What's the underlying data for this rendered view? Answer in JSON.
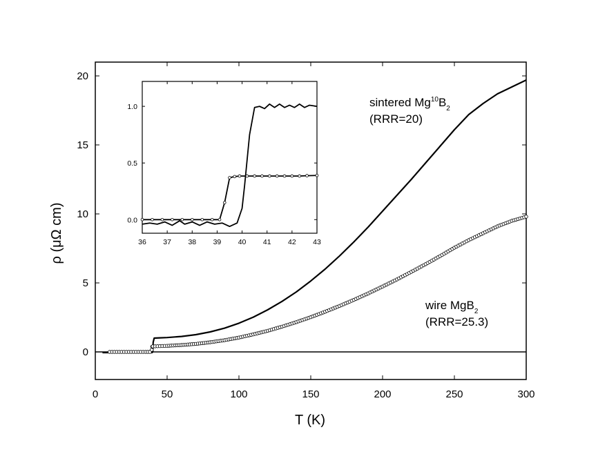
{
  "chart_data": [
    {
      "type": "line",
      "role": "main",
      "xlabel": "T (K)",
      "ylabel": "ρ (μΩ cm)",
      "xlim": [
        0,
        300
      ],
      "ylim": [
        -2,
        21
      ],
      "xticks": [
        0,
        50,
        100,
        150,
        200,
        250,
        300
      ],
      "yticks": [
        0,
        5,
        10,
        15,
        20
      ],
      "grid": false,
      "zero_line": true,
      "series": [
        {
          "style": "solid-line",
          "x": [
            5,
            10,
            20,
            30,
            38,
            39.5,
            40,
            40.3,
            41,
            45,
            50,
            60,
            70,
            80,
            90,
            100,
            110,
            120,
            130,
            140,
            150,
            160,
            170,
            180,
            190,
            200,
            210,
            220,
            230,
            240,
            250,
            260,
            270,
            280,
            290,
            300
          ],
          "y": [
            -0.05,
            -0.05,
            -0.05,
            -0.05,
            -0.05,
            -0.05,
            0.0,
            0.7,
            1.0,
            1.02,
            1.04,
            1.12,
            1.25,
            1.45,
            1.72,
            2.08,
            2.52,
            3.05,
            3.66,
            4.35,
            5.14,
            6.0,
            6.95,
            7.97,
            9.05,
            10.2,
            11.35,
            12.5,
            13.7,
            14.9,
            16.1,
            17.2,
            18.0,
            18.7,
            19.2,
            19.7
          ]
        },
        {
          "style": "open-circles",
          "x": [
            10,
            15,
            20,
            25,
            30,
            35,
            38,
            39.3,
            39.6,
            40,
            45,
            50,
            60,
            70,
            80,
            90,
            100,
            110,
            120,
            130,
            140,
            150,
            160,
            170,
            180,
            190,
            200,
            210,
            220,
            230,
            240,
            250,
            260,
            270,
            280,
            290,
            300
          ],
          "y": [
            0.0,
            0.0,
            0.0,
            0.0,
            0.0,
            0.0,
            0.0,
            0.15,
            0.38,
            0.4,
            0.42,
            0.44,
            0.5,
            0.58,
            0.7,
            0.85,
            1.04,
            1.27,
            1.53,
            1.83,
            2.16,
            2.52,
            2.91,
            3.33,
            3.77,
            4.24,
            4.74,
            5.25,
            5.8,
            6.36,
            6.94,
            7.55,
            8.1,
            8.6,
            9.1,
            9.5,
            9.8
          ]
        }
      ],
      "annotations": [
        {
          "text": "sintered Mg",
          "sup": "10",
          "text2": "B",
          "sub": "2"
        },
        {
          "text": "(RRR=20)"
        },
        {
          "text": "wire MgB",
          "sub": "2"
        },
        {
          "text": "(RRR=25.3)"
        }
      ]
    },
    {
      "type": "line",
      "role": "inset",
      "xlim": [
        36,
        43
      ],
      "ylim": [
        -0.12,
        1.22
      ],
      "xticks": [
        36,
        37,
        38,
        39,
        40,
        41,
        42,
        43
      ],
      "yticks": [
        "0.0",
        "0.5",
        "1.0"
      ],
      "grid": false,
      "series": [
        {
          "style": "solid-line",
          "x": [
            36,
            36.3,
            36.6,
            36.9,
            37.2,
            37.5,
            37.7,
            38.0,
            38.3,
            38.6,
            38.9,
            39.2,
            39.5,
            39.8,
            40.0,
            40.1,
            40.3,
            40.5,
            40.7,
            40.9,
            41.1,
            41.3,
            41.5,
            41.7,
            41.9,
            42.1,
            42.3,
            42.5,
            42.7,
            43.0
          ],
          "y": [
            -0.04,
            -0.03,
            -0.04,
            -0.02,
            -0.05,
            -0.01,
            -0.04,
            -0.02,
            -0.05,
            -0.02,
            -0.04,
            -0.03,
            -0.06,
            -0.03,
            0.1,
            0.3,
            0.75,
            0.99,
            1.0,
            0.98,
            1.02,
            0.99,
            1.02,
            0.99,
            1.01,
            0.99,
            1.02,
            0.99,
            1.01,
            1.0
          ]
        },
        {
          "style": "line-with-open-circles",
          "x": [
            36.0,
            36.4,
            36.8,
            37.2,
            37.6,
            38.0,
            38.4,
            38.8,
            39.1,
            39.3,
            39.5,
            39.7,
            39.9,
            40.2,
            40.5,
            40.8,
            41.1,
            41.4,
            41.7,
            42.0,
            42.3,
            42.6,
            43.0
          ],
          "y": [
            0.0,
            0.0,
            0.0,
            0.0,
            0.0,
            0.0,
            0.0,
            0.0,
            0.0,
            0.15,
            0.37,
            0.38,
            0.385,
            0.385,
            0.385,
            0.385,
            0.385,
            0.385,
            0.385,
            0.385,
            0.385,
            0.388,
            0.39
          ]
        }
      ]
    }
  ]
}
